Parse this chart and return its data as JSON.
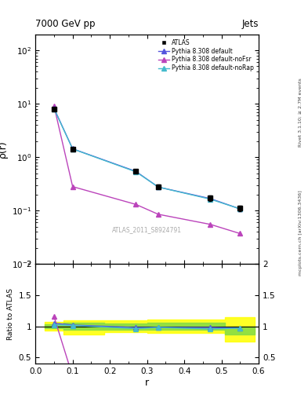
{
  "title_left": "7000 GeV pp",
  "title_right": "Jets",
  "right_label_top": "Rivet 3.1.10; ≥ 2.7M events",
  "right_label_bottom": "mcplots.cern.ch [arXiv:1306.3436]",
  "watermark": "ATLAS_2011_S8924791",
  "ylabel_top": "ρ(r)",
  "ylabel_bottom": "Ratio to ATLAS",
  "xlabel": "r",
  "r_vals": [
    0.05,
    0.1,
    0.27,
    0.33,
    0.47,
    0.55
  ],
  "atlas_y": [
    7.8,
    1.4,
    0.55,
    0.28,
    0.17,
    0.11
  ],
  "atlas_yerr": [
    0.3,
    0.1,
    0.04,
    0.025,
    0.018,
    0.012
  ],
  "pythia_default_y": [
    8.2,
    1.43,
    0.54,
    0.275,
    0.167,
    0.107
  ],
  "pythia_noFsr_y": [
    9.0,
    0.28,
    0.13,
    0.085,
    0.055,
    0.037
  ],
  "pythia_noRap_y": [
    8.0,
    1.42,
    0.53,
    0.275,
    0.163,
    0.107
  ],
  "color_atlas": "#000000",
  "color_default": "#5555dd",
  "color_noFsr": "#bb44bb",
  "color_noRap": "#44bbcc",
  "green_band_lo": [
    0.97,
    0.94,
    0.95,
    0.94,
    0.94,
    0.875
  ],
  "green_band_hi": [
    1.03,
    1.06,
    1.05,
    1.06,
    1.06,
    1.0
  ],
  "yellow_band_lo": [
    0.93,
    0.875,
    0.91,
    0.89,
    0.89,
    0.76
  ],
  "yellow_band_hi": [
    1.07,
    1.1,
    1.09,
    1.11,
    1.11,
    1.15
  ]
}
